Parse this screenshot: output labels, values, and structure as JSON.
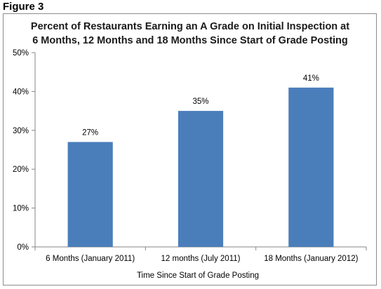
{
  "figure_label": "Figure 3",
  "chart_data": {
    "type": "bar",
    "title_lines": [
      "Percent of Restaurants Earning an A Grade on Initial Inspection at",
      "6 Months, 12 Months and 18 Months Since Start of Grade Posting"
    ],
    "categories": [
      "6 Months (January 2011)",
      "12 months (July 2011)",
      "18 Months (January 2012)"
    ],
    "values": [
      27,
      35,
      41
    ],
    "value_labels": [
      "27%",
      "35%",
      "41%"
    ],
    "xlabel": "Time Since Start of Grade Posting",
    "ylabel": "",
    "ylim": [
      0,
      50
    ],
    "y_ticks": [
      0,
      10,
      20,
      30,
      40,
      50
    ],
    "y_tick_labels": [
      "0%",
      "10%",
      "20%",
      "30%",
      "40%",
      "50%"
    ],
    "grid": false,
    "legend": "none",
    "bar_color": "#4a7ebb"
  }
}
